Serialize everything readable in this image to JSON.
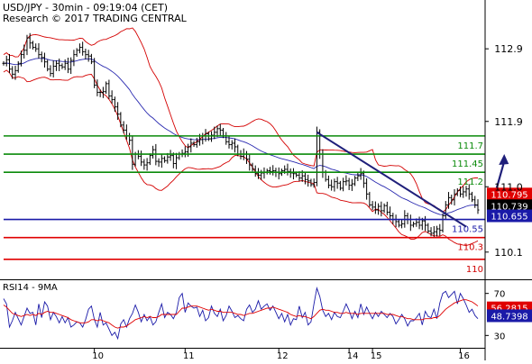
{
  "header": {
    "title": "USD/JPY - 30min - 09:19:04 (CET)",
    "subtitle": "Research © 2017 TRADING CENTRAL"
  },
  "colors": {
    "green": "#0a8a0a",
    "blue": "#1a1aa8",
    "red": "#e00000",
    "navy": "#1f1f7a",
    "bb": "#d40000",
    "ma": "#2a2ab0",
    "price": "#000000",
    "axis": "#000000",
    "panel_bg": "#ffffff",
    "current_bg": "#000000",
    "tag_green_text": "#0a8a0a",
    "tag_red_text": "#d00000",
    "tag_blue_text": "#1a1aa8",
    "tag_box_red": "#e00000",
    "tag_box_blue": "#1a1aa8",
    "tag_box_black": "#000000"
  },
  "chart_data": [
    {
      "type": "candlestick",
      "ylim": [
        109.75,
        113.2
      ],
      "y_ticks": [
        "112.9",
        "111.9",
        "111.0",
        "110.1"
      ],
      "y_tick_values": [
        112.9,
        111.9,
        111.0,
        110.1
      ],
      "x_ticks": [
        "10",
        "11",
        "12",
        "14",
        "15",
        "16"
      ],
      "x_tick_index": [
        31,
        62,
        94,
        118,
        126,
        156
      ],
      "levels": [
        {
          "label": "111.7",
          "value": 111.7,
          "color": "green"
        },
        {
          "label": "111.45",
          "value": 111.45,
          "color": "green"
        },
        {
          "label": "111.2",
          "value": 111.2,
          "color": "green"
        },
        {
          "label": "110.55",
          "value": 110.55,
          "color": "blue"
        },
        {
          "label": "110.3",
          "value": 110.3,
          "color": "red"
        },
        {
          "label": "110",
          "value": 110.0,
          "color": "red"
        }
      ],
      "price_tags": [
        {
          "label": "110.795",
          "value": 110.9,
          "style": "red"
        },
        {
          "label": "110.739",
          "value": 110.739,
          "style": "black"
        },
        {
          "label": "110.655",
          "value": 110.6,
          "style": "blue"
        }
      ],
      "trend_line": {
        "from_index": 107,
        "from": 111.75,
        "to_index": 158,
        "to": 110.45
      },
      "projection": {
        "from_index": 167,
        "from": 110.78,
        "to_index": 171,
        "to": 111.45
      },
      "close": [
        112.7,
        112.75,
        112.62,
        112.55,
        112.6,
        112.7,
        112.82,
        112.88,
        113.05,
        112.98,
        112.92,
        112.9,
        112.82,
        112.78,
        112.72,
        112.62,
        112.56,
        112.66,
        112.7,
        112.67,
        112.65,
        112.7,
        112.62,
        112.74,
        112.82,
        112.88,
        112.92,
        112.86,
        112.82,
        112.8,
        112.72,
        112.4,
        112.3,
        112.3,
        112.31,
        112.42,
        112.25,
        112.2,
        112.1,
        112.0,
        111.85,
        111.78,
        111.7,
        111.64,
        111.31,
        111.45,
        111.42,
        111.34,
        111.3,
        111.33,
        111.43,
        111.51,
        111.35,
        111.34,
        111.39,
        111.36,
        111.41,
        111.43,
        111.32,
        111.4,
        111.45,
        111.46,
        111.48,
        111.55,
        111.6,
        111.58,
        111.62,
        111.65,
        111.7,
        111.73,
        111.66,
        111.71,
        111.75,
        111.8,
        111.78,
        111.7,
        111.62,
        111.58,
        111.6,
        111.55,
        111.45,
        111.42,
        111.45,
        111.38,
        111.3,
        111.24,
        111.18,
        111.16,
        111.19,
        111.2,
        111.22,
        111.21,
        111.22,
        111.2,
        111.18,
        111.22,
        111.24,
        111.21,
        111.19,
        111.18,
        111.16,
        111.12,
        111.15,
        111.1,
        111.08,
        111.03,
        111.06,
        111.75,
        111.45,
        111.2,
        111.1,
        111.02,
        111.0,
        111.07,
        111.05,
        110.98,
        111.07,
        111.08,
        111.02,
        111.04,
        111.12,
        111.15,
        111.18,
        111.05,
        110.9,
        110.75,
        110.72,
        110.68,
        110.73,
        110.67,
        110.74,
        110.65,
        110.6,
        110.55,
        110.52,
        110.47,
        110.49,
        110.6,
        110.55,
        110.47,
        110.49,
        110.51,
        110.47,
        110.53,
        110.47,
        110.39,
        110.36,
        110.38,
        110.42,
        110.4,
        110.6,
        110.75,
        110.85,
        110.82,
        110.9,
        110.95,
        110.9,
        110.93,
        110.97,
        110.9,
        110.82,
        110.75,
        110.68
      ]
    },
    {
      "type": "line",
      "title": "RSI14 - 9MA",
      "ylim": [
        20,
        80
      ],
      "y_ticks": [
        "70",
        "30"
      ],
      "y_tick_values": [
        70,
        30
      ],
      "tags": [
        {
          "label": "56.2815",
          "value": 56.2815,
          "style": "red"
        },
        {
          "label": "48.7398",
          "value": 48.7398,
          "style": "blue"
        }
      ],
      "series": [
        {
          "name": "RSI14",
          "color": "blue",
          "values": [
            65,
            60,
            38,
            44,
            52,
            46,
            40,
            48,
            56,
            51,
            52,
            40,
            60,
            47,
            62,
            58,
            45,
            52,
            48,
            42,
            48,
            42,
            47,
            38,
            40,
            43,
            42,
            38,
            45,
            55,
            58,
            45,
            38,
            52,
            40,
            42,
            36,
            30,
            33,
            27,
            41,
            45,
            38,
            46,
            51,
            59,
            52,
            43,
            50,
            44,
            48,
            40,
            43,
            52,
            60,
            47,
            52,
            50,
            46,
            52,
            66,
            70,
            52,
            61,
            58,
            56,
            57,
            48,
            54,
            44,
            47,
            58,
            51,
            48,
            55,
            44,
            49,
            58,
            53,
            47,
            49,
            46,
            44,
            55,
            59,
            52,
            55,
            63,
            55,
            58,
            60,
            54,
            58,
            52,
            46,
            51,
            43,
            50,
            40,
            46,
            45,
            58,
            47,
            52,
            40,
            43,
            60,
            75,
            67,
            54,
            48,
            51,
            45,
            52,
            48,
            47,
            53,
            60,
            54,
            46,
            53,
            47,
            60,
            50,
            57,
            51,
            46,
            52,
            48,
            53,
            50,
            47,
            51,
            48,
            41,
            45,
            50,
            46,
            39,
            44,
            44,
            47,
            51,
            40,
            53,
            48,
            47,
            55,
            46,
            61,
            70,
            72,
            66,
            69,
            72,
            60,
            70,
            65,
            59,
            52,
            55,
            49,
            46
          ]
        },
        {
          "name": "MA",
          "color": "red",
          "values": [
            59,
            57,
            54,
            51,
            50,
            49,
            48,
            49,
            50,
            49,
            50,
            49,
            51,
            50,
            52,
            53,
            52,
            52,
            51,
            50,
            49,
            48,
            47,
            45,
            44,
            43,
            42,
            42,
            42,
            43,
            45,
            45,
            44,
            45,
            44,
            43,
            42,
            40,
            38,
            37,
            38,
            38,
            39,
            41,
            43,
            45,
            46,
            47,
            48,
            47,
            48,
            47,
            47,
            48,
            50,
            50,
            50,
            50,
            50,
            50,
            53,
            56,
            56,
            57,
            58,
            58,
            58,
            57,
            56,
            55,
            54,
            55,
            54,
            53,
            53,
            52,
            52,
            52,
            52,
            51,
            50,
            50,
            49,
            50,
            51,
            51,
            52,
            53,
            54,
            55,
            56,
            56,
            57,
            56,
            55,
            54,
            53,
            52,
            50,
            49,
            48,
            49,
            48,
            48,
            47,
            46,
            48,
            51,
            54,
            55,
            54,
            54,
            53,
            52,
            52,
            51,
            51,
            52,
            51,
            51,
            51,
            50,
            51,
            51,
            51,
            51,
            51,
            51,
            51,
            51,
            51,
            50,
            50,
            50,
            49,
            48,
            48,
            47,
            46,
            46,
            45,
            45,
            45,
            45,
            46,
            46,
            46,
            47,
            47,
            49,
            52,
            55,
            57,
            59,
            61,
            62,
            63,
            64,
            64,
            63,
            62,
            60,
            58
          ]
        }
      ]
    }
  ]
}
